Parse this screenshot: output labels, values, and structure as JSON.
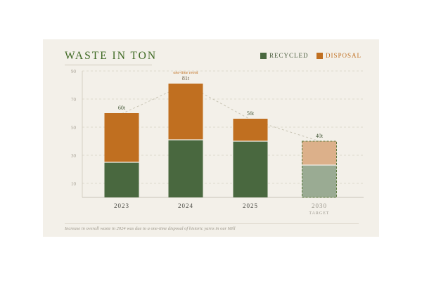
{
  "chart_data": {
    "type": "bar",
    "stacked": true,
    "title": "WASTE IN TON",
    "unit_suffix": "t",
    "categories": [
      "2023",
      "2024",
      "2025",
      "2030"
    ],
    "category_sublabels": [
      "",
      "",
      "",
      "TARGET"
    ],
    "series": [
      {
        "name": "RECYCLED",
        "color": "#49683f",
        "values": [
          25,
          41,
          40,
          23
        ]
      },
      {
        "name": "DISPOSAL",
        "color": "#c06f20",
        "values": [
          35,
          40,
          16,
          17
        ]
      }
    ],
    "totals": [
      "60t",
      "81t",
      "56t",
      "40t"
    ],
    "target_category": "2030",
    "annotations": [
      {
        "category": "2024",
        "text": "one-time event"
      }
    ],
    "yticks": [
      10,
      30,
      50,
      70,
      90
    ],
    "ylim": [
      0,
      90
    ],
    "legend_position": "top-right",
    "grid": true
  },
  "footnote": "Increase in overall waste in 2024 was due to a one-time disposal of historic yarns in our Mill"
}
